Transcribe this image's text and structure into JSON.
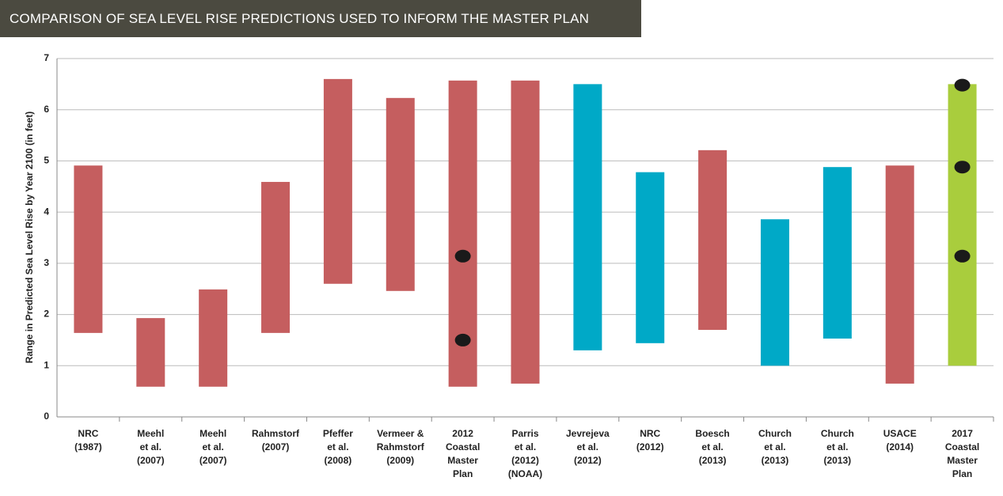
{
  "chart_data": {
    "type": "range-bar",
    "title": "COMPARISON OF SEA LEVEL RISE PREDICTIONS USED TO INFORM THE MASTER PLAN",
    "y_label": "Range in Predicted Sea Level Rise by Year 2100 (in feet)",
    "categories": [
      [
        "NRC",
        "(1987)"
      ],
      [
        "Meehl",
        "et al.",
        "(2007)"
      ],
      [
        "Meehl",
        "et al.",
        "(2007)"
      ],
      [
        "Rahmstorf",
        "(2007)"
      ],
      [
        "Pfeffer",
        "et al.",
        "(2008)"
      ],
      [
        "Vermeer &",
        "Rahmstorf",
        "(2009)"
      ],
      [
        "2012",
        "Coastal",
        "Master",
        "Plan"
      ],
      [
        "Parris",
        "et al.",
        "(2012)",
        "(NOAA)"
      ],
      [
        "Jevrejeva",
        "et al.",
        "(2012)"
      ],
      [
        "NRC",
        "(2012)"
      ],
      [
        "Boesch",
        "et al.",
        "(2013)"
      ],
      [
        "Church",
        "et al.",
        "(2013)"
      ],
      [
        "Church",
        "et al.",
        "(2013)"
      ],
      [
        "USACE",
        "(2014)"
      ],
      [
        "2017",
        "Coastal",
        "Master",
        "Plan"
      ]
    ],
    "low": [
      1.64,
      0.59,
      0.59,
      1.64,
      2.6,
      2.46,
      0.59,
      0.65,
      1.3,
      1.44,
      1.7,
      1.0,
      1.53,
      0.65,
      1.0
    ],
    "high": [
      4.91,
      1.93,
      2.49,
      4.59,
      6.6,
      6.23,
      6.57,
      6.57,
      6.5,
      4.78,
      5.21,
      3.86,
      4.88,
      4.91,
      6.5
    ],
    "colors": [
      "#c55e5f",
      "#c55e5f",
      "#c55e5f",
      "#c55e5f",
      "#c55e5f",
      "#c55e5f",
      "#c55e5f",
      "#c55e5f",
      "#00a9c7",
      "#00a9c7",
      "#c55e5f",
      "#00a9c7",
      "#00a9c7",
      "#c55e5f",
      "#a9cd3d"
    ],
    "points": [
      [],
      [],
      [],
      [],
      [],
      [],
      [
        3.14,
        1.5
      ],
      [],
      [],
      [],
      [],
      [],
      [],
      [],
      [
        6.48,
        4.88,
        3.14
      ]
    ],
    "point_color": "#1a1a1a",
    "ylim": [
      0,
      7
    ],
    "yticks": [
      0,
      1,
      2,
      3,
      4,
      5,
      6,
      7
    ],
    "grid": true
  }
}
